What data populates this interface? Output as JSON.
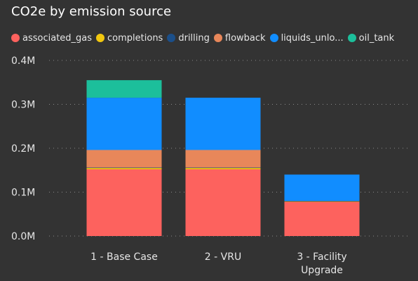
{
  "chart_data": {
    "type": "bar",
    "title": "CO2e by emission source",
    "categories": [
      [
        "1 - Base Case"
      ],
      [
        "2 - VRU"
      ],
      [
        "3 - Facility",
        "Upgrade"
      ]
    ],
    "series": [
      {
        "name": "associated_gas",
        "color": "#FD625E",
        "values": [
          152000,
          152000,
          78000
        ]
      },
      {
        "name": "completions",
        "color": "#F2C80F",
        "values": [
          3000,
          3000,
          1000
        ]
      },
      {
        "name": "drilling",
        "color": "#1B4F8A",
        "values": [
          1000,
          1000,
          1000
        ]
      },
      {
        "name": "flowback",
        "color": "#E8875A",
        "values": [
          40000,
          40000,
          0
        ]
      },
      {
        "name": "liquids_unlo...",
        "color": "#118DFF",
        "values": [
          119000,
          119000,
          60000
        ]
      },
      {
        "name": "oil_tank",
        "color": "#1CBF9B",
        "values": [
          40000,
          0,
          0
        ]
      }
    ],
    "yticks": [
      "0.0M",
      "0.1M",
      "0.2M",
      "0.3M",
      "0.4M"
    ],
    "ylim": [
      0,
      400000
    ],
    "grid": true,
    "legend_position": "top"
  }
}
